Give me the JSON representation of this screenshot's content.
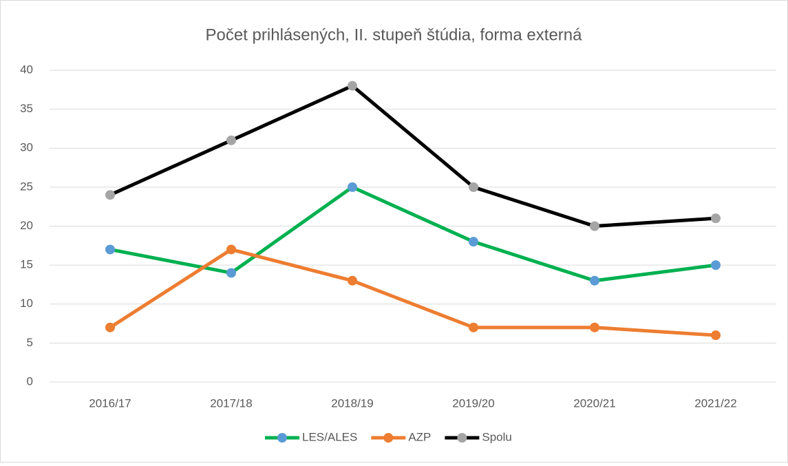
{
  "chart_data": {
    "type": "line",
    "title": "Počet prihlásených, II. stupeň štúdia, forma externá",
    "categories": [
      "2016/17",
      "2017/18",
      "2018/19",
      "2019/20",
      "2020/21",
      "2021/22"
    ],
    "series": [
      {
        "name": "LES/ALES",
        "color": "#00b050",
        "marker_color": "#5b9bd5",
        "values": [
          17,
          14,
          25,
          18,
          13,
          15
        ]
      },
      {
        "name": "AZP",
        "color": "#ed7d31",
        "marker_color": "#ed7d31",
        "values": [
          7,
          17,
          13,
          7,
          7,
          6
        ]
      },
      {
        "name": "Spolu",
        "color": "#000000",
        "marker_color": "#a5a5a5",
        "values": [
          24,
          31,
          38,
          25,
          20,
          21
        ]
      }
    ],
    "ylim": [
      0,
      40
    ],
    "yticks": [
      0,
      5,
      10,
      15,
      20,
      25,
      30,
      35,
      40
    ],
    "grid": true,
    "legend": "bottom"
  }
}
